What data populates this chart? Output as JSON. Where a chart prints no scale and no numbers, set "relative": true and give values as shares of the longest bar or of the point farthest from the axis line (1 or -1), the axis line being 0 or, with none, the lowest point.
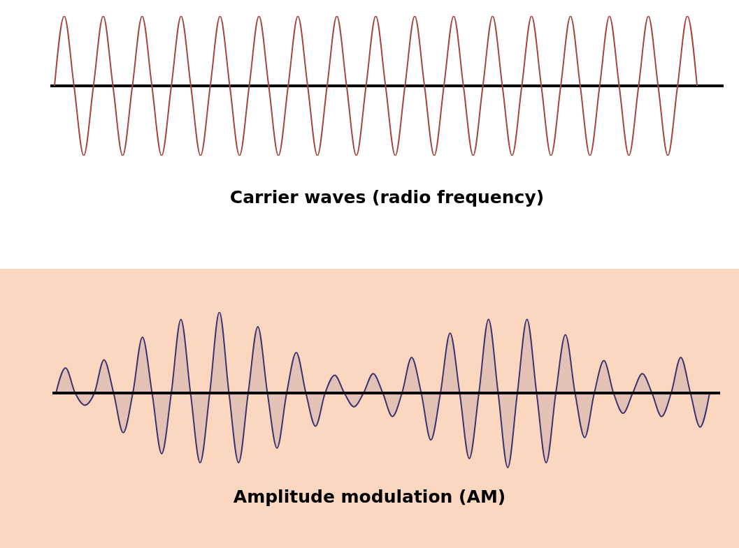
{
  "chart_data": [
    {
      "type": "line",
      "title": "Carrier waves (radio frequency)",
      "relative": true,
      "marker": "none",
      "categories": [
        null,
        null,
        null,
        null,
        null,
        null,
        null,
        null,
        null,
        null,
        null,
        null,
        null,
        null,
        null,
        null,
        null,
        null,
        null,
        null,
        null,
        null,
        null,
        null,
        null,
        null,
        null,
        null,
        null,
        null,
        null,
        null,
        null,
        null,
        null,
        null,
        null,
        null,
        null,
        null,
        null,
        null,
        null,
        null,
        null,
        null,
        null,
        null,
        null,
        null,
        null,
        null,
        null,
        null,
        null,
        null,
        null,
        null,
        null,
        null,
        null,
        null,
        null,
        null,
        null,
        null,
        null
      ],
      "series": [
        {
          "color": "#a4463c",
          "values": [
            0,
            1,
            0,
            -1,
            0,
            1,
            0,
            -1,
            0,
            1,
            0,
            -1,
            0,
            1,
            0,
            -1,
            0,
            1,
            0,
            -1,
            0,
            1,
            0,
            -1,
            0,
            1,
            0,
            -1,
            0,
            1,
            0,
            -1,
            0,
            1,
            0,
            -1,
            0,
            1,
            0,
            -1,
            0,
            1,
            0,
            -1,
            0,
            1,
            0,
            -1,
            0,
            1,
            0,
            -1,
            0,
            1,
            0,
            -1,
            0,
            1,
            0,
            -1,
            0,
            1,
            0,
            -1,
            0,
            1,
            0
          ]
        }
      ]
    },
    {
      "type": "area",
      "title": "Amplitude modulation (AM)",
      "relative": true,
      "marker": "none",
      "categories": [
        null,
        null,
        null,
        null,
        null,
        null,
        null,
        null,
        null,
        null,
        null,
        null,
        null,
        null,
        null,
        null,
        null,
        null,
        null,
        null,
        null,
        null,
        null,
        null,
        null,
        null,
        null,
        null,
        null,
        null,
        null,
        null,
        null,
        null,
        null,
        null,
        null,
        null,
        null,
        null,
        null,
        null,
        null,
        null,
        null,
        null,
        null,
        null,
        null,
        null,
        null,
        null,
        null,
        null,
        null,
        null,
        null,
        null,
        null,
        null,
        null,
        null,
        null,
        null,
        null,
        null,
        null,
        null,
        null
      ],
      "series": [
        {
          "color": "#3c3470",
          "values": [
            0,
            0.31,
            0,
            -0.15,
            0,
            0.41,
            0,
            -0.49,
            0,
            0.69,
            0,
            -0.75,
            0,
            0.91,
            0,
            -0.86,
            0,
            1,
            0,
            -0.86,
            0,
            0.82,
            0,
            -0.68,
            0,
            0.5,
            0,
            -0.41,
            0,
            0.22,
            0,
            -0.17,
            0,
            0.24,
            0,
            -0.29,
            0,
            0.44,
            0,
            -0.58,
            0,
            0.74,
            0,
            -0.81,
            0,
            0.91,
            0,
            -0.92,
            0,
            0.91,
            0,
            -0.86,
            0,
            0.72,
            0,
            -0.55,
            0,
            0.4,
            0,
            -0.25,
            0,
            0.24,
            0,
            -0.29,
            0,
            0.44,
            0,
            -0.42,
            0
          ]
        }
      ]
    }
  ]
}
